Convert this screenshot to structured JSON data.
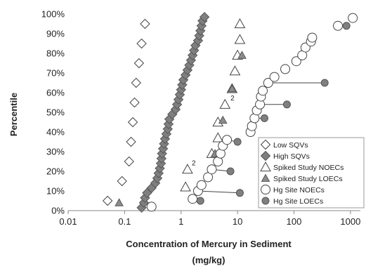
{
  "chart_data": {
    "type": "scatter",
    "xlabel": "Concentration of Mercury in Sediment",
    "xunit": "(mg/kg)",
    "ylabel": "Percentile",
    "xscale": "log",
    "xlim": [
      0.01,
      1500
    ],
    "ylim": [
      0,
      100
    ],
    "xticks": [
      0.01,
      0.1,
      1,
      10,
      100,
      1000
    ],
    "xtick_labels": [
      "0.01",
      "0.1",
      "1",
      "10",
      "100",
      "1000"
    ],
    "yticks": [
      0,
      10,
      20,
      30,
      40,
      50,
      60,
      70,
      80,
      90,
      100
    ],
    "ytick_labels": [
      "0%",
      "10%",
      "20%",
      "30%",
      "40%",
      "50%",
      "60%",
      "70%",
      "80%",
      "90%",
      "100%"
    ],
    "legend_position": "lower-right",
    "series": [
      {
        "name": "Low SQVs",
        "marker": "diamond-open",
        "color": "#555555",
        "points": [
          [
            0.05,
            5
          ],
          [
            0.09,
            15
          ],
          [
            0.12,
            25
          ],
          [
            0.13,
            35
          ],
          [
            0.14,
            45
          ],
          [
            0.15,
            55
          ],
          [
            0.16,
            65
          ],
          [
            0.18,
            75
          ],
          [
            0.2,
            85
          ],
          [
            0.23,
            95
          ]
        ]
      },
      {
        "name": "High SQVs",
        "marker": "diamond-filled",
        "color": "#7f7f7f",
        "points": [
          [
            0.2,
            1.5
          ],
          [
            0.22,
            4
          ],
          [
            0.23,
            6.5
          ],
          [
            0.25,
            9
          ],
          [
            0.3,
            11.5
          ],
          [
            0.35,
            14
          ],
          [
            0.38,
            16.5
          ],
          [
            0.4,
            19
          ],
          [
            0.42,
            21.5
          ],
          [
            0.44,
            24
          ],
          [
            0.45,
            26.5
          ],
          [
            0.46,
            29
          ],
          [
            0.48,
            31.5
          ],
          [
            0.5,
            34
          ],
          [
            0.52,
            36.5
          ],
          [
            0.55,
            39
          ],
          [
            0.58,
            41.5
          ],
          [
            0.6,
            44
          ],
          [
            0.62,
            46.5
          ],
          [
            0.7,
            49
          ],
          [
            0.8,
            51.5
          ],
          [
            0.85,
            54
          ],
          [
            0.9,
            56.5
          ],
          [
            0.95,
            59
          ],
          [
            1.0,
            61.5
          ],
          [
            1.05,
            64
          ],
          [
            1.1,
            66.5
          ],
          [
            1.2,
            69
          ],
          [
            1.3,
            71.5
          ],
          [
            1.4,
            74
          ],
          [
            1.5,
            76.5
          ],
          [
            1.6,
            79
          ],
          [
            1.7,
            81.5
          ],
          [
            1.8,
            84
          ],
          [
            2.0,
            86.5
          ],
          [
            2.1,
            89
          ],
          [
            2.2,
            91.5
          ],
          [
            2.3,
            94
          ],
          [
            2.4,
            96.5
          ],
          [
            2.6,
            98.5
          ]
        ]
      },
      {
        "name": "Spiked Study NOECs",
        "marker": "triangle-open",
        "color": "#555555",
        "points": [
          [
            1.2,
            12
          ],
          [
            1.3,
            21
          ],
          [
            3.5,
            29
          ],
          [
            4.5,
            37
          ],
          [
            4.5,
            45
          ],
          [
            6,
            54
          ],
          [
            8,
            62
          ],
          [
            9,
            71
          ],
          [
            10,
            79
          ],
          [
            11,
            87
          ],
          [
            11,
            95
          ]
        ]
      },
      {
        "name": "Spiked Study LOECs",
        "marker": "triangle-filled",
        "color": "#8c8c8c",
        "points": [
          [
            0.08,
            4
          ],
          [
            2,
            11
          ],
          [
            4,
            29
          ],
          [
            5.5,
            46
          ],
          [
            8,
            62
          ],
          [
            12,
            79
          ]
        ]
      },
      {
        "name": "Hg Site NOECs",
        "marker": "circle-open",
        "color": "#555555",
        "points": [
          [
            0.3,
            2
          ],
          [
            1.6,
            6
          ],
          [
            2,
            10
          ],
          [
            2.3,
            13
          ],
          [
            3,
            17
          ],
          [
            3.5,
            21
          ],
          [
            4.5,
            25
          ],
          [
            5,
            29
          ],
          [
            5.5,
            33
          ],
          [
            6.5,
            36
          ],
          [
            17,
            40
          ],
          [
            18,
            43
          ],
          [
            20,
            47
          ],
          [
            22,
            51
          ],
          [
            25,
            54
          ],
          [
            26,
            58
          ],
          [
            28,
            61
          ],
          [
            35,
            65
          ],
          [
            45,
            68
          ],
          [
            70,
            72
          ],
          [
            110,
            76
          ],
          [
            140,
            79
          ],
          [
            160,
            83
          ],
          [
            200,
            86
          ],
          [
            210,
            88
          ],
          [
            600,
            94
          ],
          [
            1100,
            98
          ]
        ]
      },
      {
        "name": "Hg Site LOECs",
        "marker": "circle-filled",
        "color": "#7f7f7f",
        "points": [
          [
            2.2,
            5
          ],
          [
            11,
            9
          ],
          [
            7.5,
            20
          ],
          [
            10,
            35
          ],
          [
            30,
            47
          ],
          [
            75,
            54
          ],
          [
            350,
            65
          ],
          [
            850,
            94
          ]
        ]
      }
    ],
    "connectors": [
      {
        "from": [
          1.6,
          6
        ],
        "to": [
          2.2,
          5
        ]
      },
      {
        "from": [
          2,
          10
        ],
        "to": [
          11,
          9
        ]
      },
      {
        "from": [
          3.5,
          21
        ],
        "to": [
          7.5,
          20
        ]
      },
      {
        "from": [
          6.5,
          36
        ],
        "to": [
          10,
          35
        ]
      },
      {
        "from": [
          20,
          47
        ],
        "to": [
          30,
          47
        ]
      },
      {
        "from": [
          25,
          54
        ],
        "to": [
          75,
          54
        ]
      },
      {
        "from": [
          35,
          65
        ],
        "to": [
          350,
          65
        ]
      },
      {
        "from": [
          600,
          94
        ],
        "to": [
          850,
          94
        ]
      }
    ],
    "annotations": [
      {
        "text": "2",
        "x": 1.55,
        "y": 23
      },
      {
        "text": "2",
        "x": 7.5,
        "y": 56
      }
    ]
  }
}
